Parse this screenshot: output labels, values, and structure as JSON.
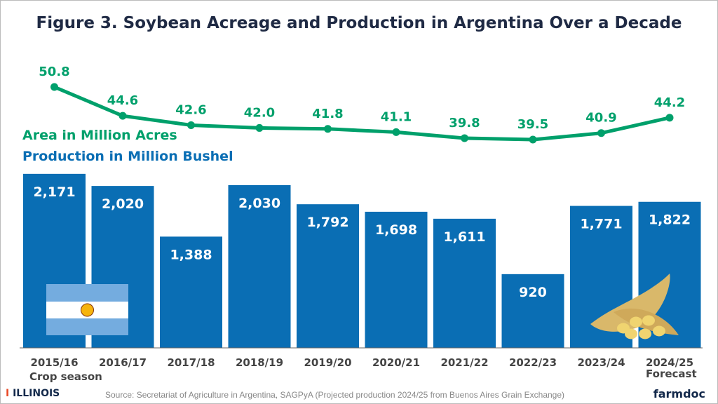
{
  "title": "Figure 3. Soybean Acreage and Production in Argentina Over a Decade",
  "legend": {
    "area": "Area in Million Acres",
    "production": "Production in Million Bushel"
  },
  "colors": {
    "area": "#00a06b",
    "production": "#0a6eb4",
    "title": "#1f2a44"
  },
  "chart_data": {
    "type": "bar+line",
    "categories": [
      "2015/16",
      "2016/17",
      "2017/18",
      "2018/19",
      "2019/20",
      "2020/21",
      "2021/22",
      "2022/23",
      "2023/24",
      "2024/25"
    ],
    "series": [
      {
        "name": "Production in Million Bushel",
        "type": "bar",
        "values": [
          2171,
          2020,
          1388,
          2030,
          1792,
          1698,
          1611,
          920,
          1771,
          1822
        ],
        "labels": [
          "2,171",
          "2,020",
          "1,388",
          "2,030",
          "1,792",
          "1,698",
          "1,611",
          "920",
          "1,771",
          "1,822"
        ]
      },
      {
        "name": "Area in Million Acres",
        "type": "line",
        "values": [
          50.8,
          44.6,
          42.6,
          42.0,
          41.8,
          41.1,
          39.8,
          39.5,
          40.9,
          44.2
        ],
        "labels": [
          "50.8",
          "44.6",
          "42.6",
          "42.0",
          "41.8",
          "41.1",
          "39.8",
          "39.5",
          "40.9",
          "44.2"
        ]
      }
    ],
    "xlabel": "Crop season",
    "forecast_note": "Forecast",
    "grid": false
  },
  "footer": {
    "source": "Source: Secretariat of Agriculture in Argentina, SAGPyA (Projected production 2024/25 from Buenos Aires Grain Exchange)",
    "logo_left": "ILLINOIS",
    "logo_right": "farmdoc"
  }
}
